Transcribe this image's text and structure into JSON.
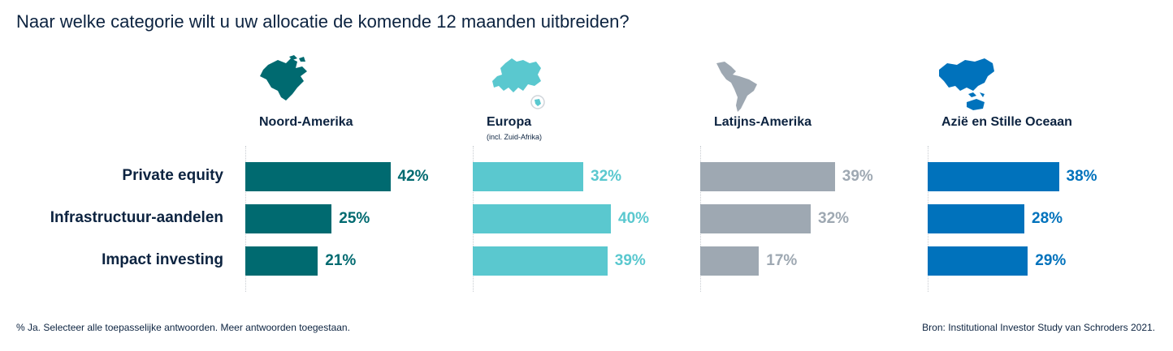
{
  "title": "Naar welke categorie wilt u uw allocatie de komende 12 maanden uitbreiden?",
  "footnote": "% Ja. Selecteer alle toepasselijke antwoorden. Meer antwoorden toegestaan.",
  "source": "Bron: Institutional Investor Study van Schroders 2021.",
  "chart_data": {
    "type": "bar",
    "orientation": "horizontal",
    "title": "Naar welke categorie wilt u uw allocatie de komende 12 maanden uitbreiden?",
    "categories": [
      "Private equity",
      "Infrastructuur-aandelen",
      "Impact investing"
    ],
    "unit": "%",
    "series": [
      {
        "name": "Noord-Amerika",
        "subtitle": "",
        "color": "#006a70",
        "values": [
          42,
          25,
          21
        ],
        "labels": [
          "42%",
          "25%",
          "21%"
        ]
      },
      {
        "name": "Europa",
        "subtitle": "(incl. Zuid-Afrika)",
        "color": "#5ac8cf",
        "values": [
          32,
          40,
          39
        ],
        "labels": [
          "32%",
          "40%",
          "39%"
        ]
      },
      {
        "name": "Latijns-Amerika",
        "subtitle": "",
        "color": "#9ea8b2",
        "values": [
          39,
          32,
          17
        ],
        "labels": [
          "39%",
          "32%",
          "17%"
        ]
      },
      {
        "name": "Azië en Stille Oceaan",
        "subtitle": "",
        "color": "#0072bc",
        "values": [
          38,
          28,
          29
        ],
        "labels": [
          "38%",
          "28%",
          "29%"
        ]
      }
    ]
  }
}
